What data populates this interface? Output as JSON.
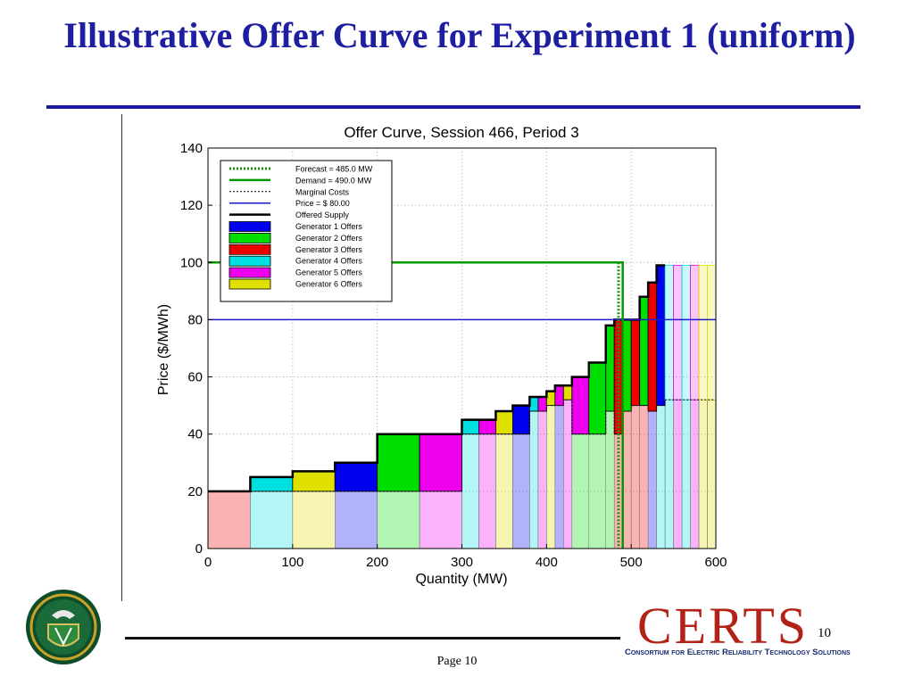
{
  "slide": {
    "title": "Illustrative Offer Curve for Experiment 1 (uniform)",
    "page_label": "Page 10",
    "slide_number": "10"
  },
  "logos": {
    "certs_word": "CERTS",
    "certs_tagline": "Consortium for Electric Reliability Technology Solutions",
    "doe_seal_icon": "doe-seal-icon"
  },
  "colors": {
    "title": "#1e1ea0",
    "gen1": "#0000ee",
    "gen2": "#00dd00",
    "gen3": "#ee0000",
    "gen4": "#00e0e0",
    "gen5": "#ee00ee",
    "gen6": "#e0e000",
    "forecast": "#119911",
    "demand": "#009900",
    "price": "#1a1acc",
    "certs_red": "#b22218"
  },
  "chart_data": {
    "type": "bar",
    "title": "Offer Curve, Session 466, Period 3",
    "xlabel": "Quantity (MW)",
    "ylabel": "Price ($/MWh)",
    "xlim": [
      0,
      600
    ],
    "ylim": [
      0,
      140
    ],
    "xticks": [
      0,
      100,
      200,
      300,
      400,
      500,
      600
    ],
    "yticks": [
      0,
      20,
      40,
      60,
      80,
      100,
      120,
      140
    ],
    "grid": true,
    "legend_position": "top-left",
    "legend": [
      {
        "label": "Forecast = 485.0 MW",
        "style": "dotted-green-line"
      },
      {
        "label": "Demand = 490.0 MW",
        "style": "green-line"
      },
      {
        "label": "Marginal Costs",
        "style": "black-dashed-line"
      },
      {
        "label": "Price = $ 80.00",
        "style": "blue-line"
      },
      {
        "label": "Offered Supply",
        "style": "black-thick-line"
      },
      {
        "label": "Generator 1 Offers",
        "style": "gen1-box"
      },
      {
        "label": "Generator 2 Offers",
        "style": "gen2-box"
      },
      {
        "label": "Generator 3 Offers",
        "style": "gen3-box"
      },
      {
        "label": "Generator 4 Offers",
        "style": "gen4-box"
      },
      {
        "label": "Generator 5 Offers",
        "style": "gen5-box"
      },
      {
        "label": "Generator 6 Offers",
        "style": "gen6-box"
      }
    ],
    "reference_lines": {
      "forecast_mw": 485,
      "demand_mw": 490,
      "demand_price_level": 100,
      "clearing_price": 80
    },
    "marginal_cost_steps": [
      {
        "q0": 0,
        "q1": 50,
        "p": 20,
        "gen": 3
      },
      {
        "q0": 50,
        "q1": 100,
        "p": 20,
        "gen": 4
      },
      {
        "q0": 100,
        "q1": 150,
        "p": 20,
        "gen": 6
      },
      {
        "q0": 150,
        "q1": 200,
        "p": 20,
        "gen": 1
      },
      {
        "q0": 200,
        "q1": 250,
        "p": 20,
        "gen": 2
      },
      {
        "q0": 250,
        "q1": 300,
        "p": 20,
        "gen": 5
      },
      {
        "q0": 300,
        "q1": 320,
        "p": 40,
        "gen": 4
      },
      {
        "q0": 320,
        "q1": 340,
        "p": 40,
        "gen": 5
      },
      {
        "q0": 340,
        "q1": 360,
        "p": 40,
        "gen": 6
      },
      {
        "q0": 360,
        "q1": 380,
        "p": 40,
        "gen": 1
      },
      {
        "q0": 380,
        "q1": 390,
        "p": 48,
        "gen": 4
      },
      {
        "q0": 390,
        "q1": 400,
        "p": 48,
        "gen": 5
      },
      {
        "q0": 400,
        "q1": 410,
        "p": 50,
        "gen": 6
      },
      {
        "q0": 410,
        "q1": 420,
        "p": 50,
        "gen": 1
      },
      {
        "q0": 420,
        "q1": 430,
        "p": 52,
        "gen": 5
      },
      {
        "q0": 430,
        "q1": 450,
        "p": 40,
        "gen": 2
      },
      {
        "q0": 450,
        "q1": 470,
        "p": 40,
        "gen": 2
      },
      {
        "q0": 470,
        "q1": 480,
        "p": 48,
        "gen": 2
      },
      {
        "q0": 480,
        "q1": 490,
        "p": 40,
        "gen": 3
      },
      {
        "q0": 490,
        "q1": 500,
        "p": 48,
        "gen": 3
      },
      {
        "q0": 500,
        "q1": 510,
        "p": 50,
        "gen": 3
      },
      {
        "q0": 510,
        "q1": 520,
        "p": 50,
        "gen": 3
      },
      {
        "q0": 520,
        "q1": 530,
        "p": 48,
        "gen": 1
      },
      {
        "q0": 530,
        "q1": 540,
        "p": 50,
        "gen": 4
      },
      {
        "q0": 540,
        "q1": 550,
        "p": 52,
        "gen": 4
      },
      {
        "q0": 550,
        "q1": 560,
        "p": 52,
        "gen": 5
      },
      {
        "q0": 560,
        "q1": 570,
        "p": 52,
        "gen": 4
      },
      {
        "q0": 570,
        "q1": 580,
        "p": 52,
        "gen": 5
      },
      {
        "q0": 580,
        "q1": 590,
        "p": 52,
        "gen": 6
      },
      {
        "q0": 590,
        "q1": 600,
        "p": 52,
        "gen": 6
      }
    ],
    "offer_blocks": [
      {
        "q0": 0,
        "q1": 50,
        "p": 20,
        "gen": 3
      },
      {
        "q0": 50,
        "q1": 100,
        "p": 25,
        "gen": 4
      },
      {
        "q0": 100,
        "q1": 150,
        "p": 27,
        "gen": 6
      },
      {
        "q0": 150,
        "q1": 200,
        "p": 30,
        "gen": 1
      },
      {
        "q0": 200,
        "q1": 250,
        "p": 40,
        "gen": 2
      },
      {
        "q0": 250,
        "q1": 300,
        "p": 40,
        "gen": 5
      },
      {
        "q0": 300,
        "q1": 320,
        "p": 45,
        "gen": 4
      },
      {
        "q0": 320,
        "q1": 340,
        "p": 45,
        "gen": 5
      },
      {
        "q0": 340,
        "q1": 360,
        "p": 48,
        "gen": 6
      },
      {
        "q0": 360,
        "q1": 380,
        "p": 50,
        "gen": 1
      },
      {
        "q0": 380,
        "q1": 390,
        "p": 53,
        "gen": 4
      },
      {
        "q0": 390,
        "q1": 400,
        "p": 53,
        "gen": 5
      },
      {
        "q0": 400,
        "q1": 410,
        "p": 55,
        "gen": 6
      },
      {
        "q0": 410,
        "q1": 420,
        "p": 57,
        "gen": 5
      },
      {
        "q0": 420,
        "q1": 430,
        "p": 57,
        "gen": 6
      },
      {
        "q0": 430,
        "q1": 450,
        "p": 60,
        "gen": 5
      },
      {
        "q0": 450,
        "q1": 470,
        "p": 65,
        "gen": 2
      },
      {
        "q0": 470,
        "q1": 480,
        "p": 78,
        "gen": 2
      },
      {
        "q0": 480,
        "q1": 490,
        "p": 80,
        "gen": 3
      },
      {
        "q0": 490,
        "q1": 500,
        "p": 80,
        "gen": 2
      },
      {
        "q0": 500,
        "q1": 510,
        "p": 80,
        "gen": 3
      },
      {
        "q0": 510,
        "q1": 520,
        "p": 88,
        "gen": 2
      },
      {
        "q0": 520,
        "q1": 530,
        "p": 93,
        "gen": 3
      },
      {
        "q0": 530,
        "q1": 540,
        "p": 99,
        "gen": 1
      },
      {
        "q0": 540,
        "q1": 550,
        "p": 99,
        "gen": 4
      },
      {
        "q0": 550,
        "q1": 560,
        "p": 99,
        "gen": 5
      },
      {
        "q0": 560,
        "q1": 570,
        "p": 99,
        "gen": 4
      },
      {
        "q0": 570,
        "q1": 580,
        "p": 99,
        "gen": 5
      },
      {
        "q0": 580,
        "q1": 590,
        "p": 99,
        "gen": 6
      },
      {
        "q0": 590,
        "q1": 600,
        "p": 99,
        "gen": 6
      }
    ],
    "supply_active_max_mw": 540
  }
}
